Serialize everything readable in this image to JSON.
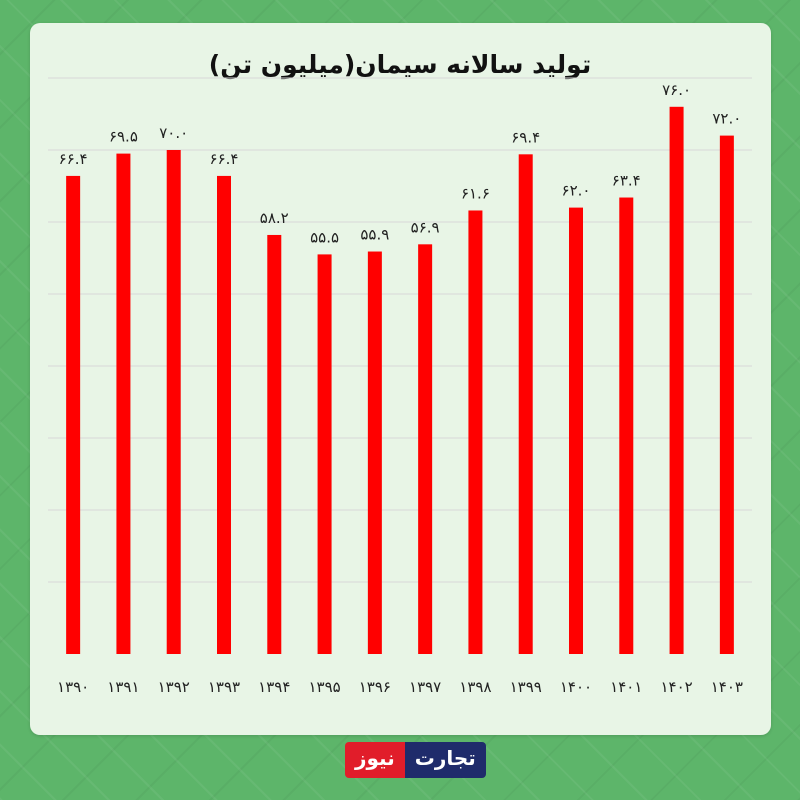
{
  "title": "تولید سالانه سیمان(میلیون تن)",
  "brand": {
    "part1": "تجارت",
    "part2": "نیوز"
  },
  "colors": {
    "bar": "#ff0000",
    "card": "#e8f5e6",
    "background": "#5db56a",
    "grid": "#d8d8d8"
  },
  "chart_data": {
    "type": "bar",
    "title": "تولید سالانه سیمان(میلیون تن)",
    "xlabel": "",
    "ylabel": "",
    "ylim": [
      0,
      80
    ],
    "grid": true,
    "categories": [
      "۱۳۹۰",
      "۱۳۹۱",
      "۱۳۹۲",
      "۱۳۹۳",
      "۱۳۹۴",
      "۱۳۹۵",
      "۱۳۹۶",
      "۱۳۹۷",
      "۱۳۹۸",
      "۱۳۹۹",
      "۱۴۰۰",
      "۱۴۰۱",
      "۱۴۰۲",
      "۱۴۰۳"
    ],
    "values": [
      66.4,
      69.5,
      70.0,
      66.4,
      58.2,
      55.5,
      55.9,
      56.9,
      61.6,
      69.4,
      62.0,
      63.4,
      76.0,
      72.0
    ],
    "value_labels": [
      "۶۶.۴",
      "۶۹.۵",
      "۷۰.۰",
      "۶۶.۴",
      "۵۸.۲",
      "۵۵.۵",
      "۵۵.۹",
      "۵۶.۹",
      "۶۱.۶",
      "۶۹.۴",
      "۶۲.۰",
      "۶۳.۴",
      "۷۶.۰",
      "۷۲.۰"
    ]
  }
}
